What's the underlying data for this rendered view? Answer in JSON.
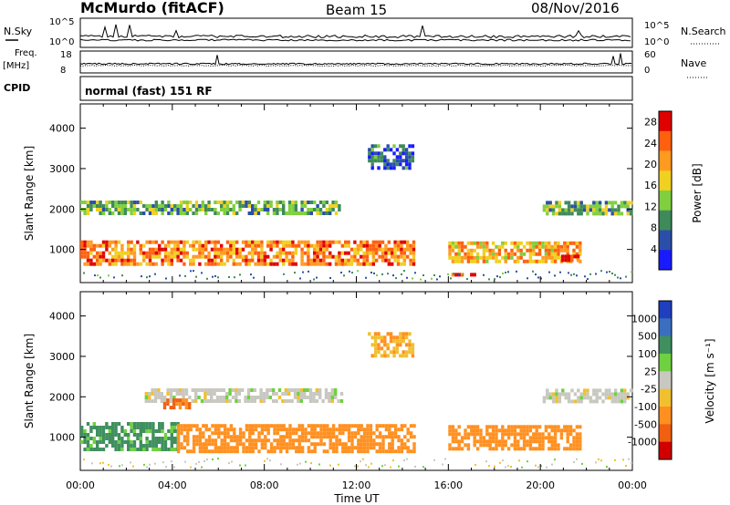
{
  "header": {
    "station": "McMurdo (fitACF)",
    "beam": "Beam 15",
    "date": "08/Nov/2016"
  },
  "strip_labels": {
    "nsky": "N.Sky",
    "freq": "Freq.",
    "freq_unit": "[MHz]",
    "cpid": "CPID",
    "nsearch": "N.Search",
    "nave": "Nave",
    "cpid_text": "normal (fast) 151 RF",
    "noise_ticks_left": [
      "10^5",
      "10^0"
    ],
    "noise_ticks_right": [
      "10^5",
      "10^0"
    ],
    "freq_ticks_left": [
      "18",
      "8"
    ],
    "freq_ticks_right": [
      "60",
      "0"
    ]
  },
  "colors": {
    "power_scale": [
      "#1a1aff",
      "#2b4fa8",
      "#3f8a5a",
      "#7fcf3f",
      "#f0d020",
      "#ff9a20",
      "#ff6010",
      "#e00000"
    ],
    "velocity_scale": [
      "#1f3fbf",
      "#3a6fbf",
      "#3f8f5f",
      "#6fd040",
      "#c8c8c0",
      "#f0c030",
      "#ff9020",
      "#f06010",
      "#d00000"
    ]
  },
  "chart_data": [
    {
      "type": "heatmap",
      "name": "power",
      "xlabel": "",
      "ylabel": "Slant Range [km]",
      "x_ticks": [
        "00:00",
        "04:00",
        "08:00",
        "12:00",
        "16:00",
        "20:00",
        "00:00"
      ],
      "xlim_hours": [
        0,
        24
      ],
      "y_ticks": [
        1000,
        2000,
        3000,
        4000
      ],
      "ylim": [
        180,
        4600
      ],
      "colorbar_label": "Power [dB]",
      "colorbar_ticks": [
        4,
        8,
        12,
        16,
        20,
        24,
        28
      ],
      "colorbar_range": [
        0,
        30
      ],
      "bands": [
        {
          "start_h": 0.0,
          "end_h": 11.3,
          "center_km": 2050,
          "width_km": 320,
          "level": 12
        },
        {
          "start_h": 20.1,
          "end_h": 24.0,
          "center_km": 2050,
          "width_km": 300,
          "level": 12
        },
        {
          "start_h": 0.0,
          "end_h": 14.5,
          "center_km": 950,
          "width_km": 550,
          "level": 22
        },
        {
          "start_h": 16.0,
          "end_h": 21.7,
          "center_km": 950,
          "width_km": 500,
          "level": 20
        },
        {
          "start_h": 12.5,
          "end_h": 14.5,
          "center_km": 3300,
          "width_km": 600,
          "level": 6
        },
        {
          "start_h": 16.0,
          "end_h": 17.3,
          "center_km": 380,
          "width_km": 80,
          "level": 28
        },
        {
          "start_h": 20.9,
          "end_h": 21.6,
          "center_km": 800,
          "width_km": 140,
          "level": 28
        }
      ]
    },
    {
      "type": "heatmap",
      "name": "velocity",
      "xlabel": "Time UT",
      "ylabel": "Slant Range [km]",
      "x_ticks": [
        "00:00",
        "04:00",
        "08:00",
        "12:00",
        "16:00",
        "20:00",
        "00:00"
      ],
      "xlim_hours": [
        0,
        24
      ],
      "y_ticks": [
        1000,
        2000,
        3000,
        4000
      ],
      "ylim": [
        180,
        4600
      ],
      "colorbar_label": "Velocity [m s⁻¹]",
      "colorbar_ticks": [
        1000,
        500,
        100,
        25,
        -25,
        -100,
        -500,
        -1000
      ],
      "bands": [
        {
          "start_h": 2.8,
          "end_h": 11.3,
          "center_km": 2050,
          "width_km": 320,
          "velocity": 0
        },
        {
          "start_h": 3.6,
          "end_h": 4.7,
          "center_km": 1850,
          "width_km": 220,
          "velocity": -600
        },
        {
          "start_h": 20.1,
          "end_h": 24.0,
          "center_km": 2050,
          "width_km": 300,
          "velocity": 0
        },
        {
          "start_h": 0.0,
          "end_h": 4.2,
          "center_km": 1050,
          "width_km": 650,
          "velocity": 150
        },
        {
          "start_h": 4.2,
          "end_h": 14.5,
          "center_km": 1000,
          "width_km": 650,
          "velocity": -300
        },
        {
          "start_h": 16.0,
          "end_h": 21.7,
          "center_km": 1000,
          "width_km": 600,
          "velocity": -300
        },
        {
          "start_h": 12.5,
          "end_h": 14.5,
          "center_km": 3300,
          "width_km": 600,
          "velocity": -100
        }
      ]
    }
  ]
}
